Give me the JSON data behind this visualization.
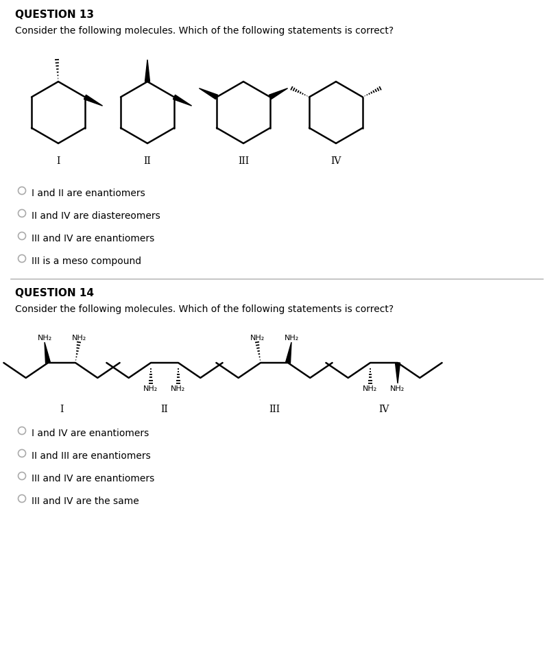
{
  "background_color": "#ffffff",
  "q13": {
    "title": "QUESTION 13",
    "question": "Consider the following molecules. Which of the following statements is correct?",
    "options": [
      "I and II are enantiomers",
      "II and IV are diastereomers",
      "III and IV are enantiomers",
      "III is a meso compound"
    ],
    "molecule_labels": [
      "I",
      "II",
      "III",
      "IV"
    ]
  },
  "q14": {
    "title": "QUESTION 14",
    "question": "Consider the following molecules. Which of the following statements is correct?",
    "options": [
      "I and IV are enantiomers",
      "II and III are enantiomers",
      "III and IV are enantiomers",
      "III and IV are the same"
    ],
    "molecule_labels": [
      "I",
      "II",
      "III",
      "IV"
    ]
  },
  "title_fontsize": 11,
  "question_fontsize": 10,
  "option_fontsize": 10,
  "label_fontsize": 10
}
